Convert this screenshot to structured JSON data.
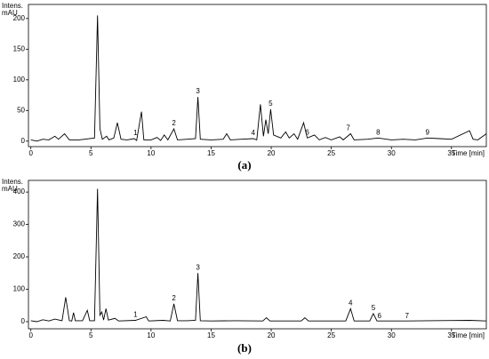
{
  "chart_data": [
    {
      "type": "line",
      "caption": "(a)",
      "ylabel": [
        "Intens.",
        "mAU"
      ],
      "xlabel": "Time [min]",
      "color": "#000000",
      "xlim": [
        -0.2,
        37.9
      ],
      "ylim": [
        -9,
        223
      ],
      "xticks": [
        0,
        5,
        10,
        15,
        20,
        25,
        30,
        35
      ],
      "yticks": [
        0,
        50,
        100,
        150,
        200
      ],
      "x": [
        0,
        0.5,
        1,
        1.5,
        2,
        2.3,
        2.8,
        3.2,
        4,
        5.3,
        5.55,
        5.75,
        5.95,
        6.3,
        6.5,
        6.9,
        7.2,
        7.5,
        8,
        8.6,
        8.8,
        9.2,
        9.4,
        10,
        10.5,
        10.8,
        11.1,
        11.4,
        11.9,
        12.2,
        13,
        13.7,
        13.9,
        14.1,
        15,
        16,
        16.3,
        16.6,
        17.5,
        18.5,
        18.8,
        19.1,
        19.35,
        19.55,
        19.75,
        19.95,
        20.2,
        20.8,
        21.2,
        21.5,
        21.9,
        22.2,
        22.7,
        23,
        23.6,
        24,
        24.5,
        25,
        25.7,
        26,
        26.6,
        26.9,
        28,
        28.9,
        30,
        31,
        32,
        33,
        34,
        35,
        36.5,
        36.8,
        37.2,
        37.9
      ],
      "values": [
        2,
        0,
        3,
        2,
        8,
        3,
        12,
        2,
        2,
        5,
        205,
        20,
        3,
        8,
        2,
        5,
        30,
        3,
        2,
        4,
        1,
        48,
        2,
        2,
        6,
        1,
        10,
        2,
        20,
        2,
        3,
        4,
        72,
        3,
        2,
        3,
        12,
        2,
        3,
        4,
        2,
        60,
        8,
        35,
        12,
        52,
        10,
        5,
        15,
        5,
        12,
        3,
        30,
        5,
        10,
        2,
        6,
        2,
        7,
        2,
        12,
        2,
        3,
        5,
        2,
        3,
        2,
        5,
        4,
        3,
        17,
        3,
        2,
        12
      ],
      "annotations": [
        {
          "text": "1",
          "x": 8.7,
          "y": 4
        },
        {
          "text": "2",
          "x": 11.9,
          "y": 20
        },
        {
          "text": "3",
          "x": 13.9,
          "y": 72
        },
        {
          "text": "4",
          "x": 18.5,
          "y": 4
        },
        {
          "text": "5",
          "x": 19.95,
          "y": 52
        },
        {
          "text": "6",
          "x": 23,
          "y": 5
        },
        {
          "text": "7",
          "x": 26.4,
          "y": 12
        },
        {
          "text": "8",
          "x": 28.9,
          "y": 5
        },
        {
          "text": "9",
          "x": 33,
          "y": 5
        }
      ]
    },
    {
      "type": "line",
      "caption": "(b)",
      "ylabel": [
        "Intens.",
        "mAU"
      ],
      "xlabel": "Time [min]",
      "color": "#000000",
      "xlim": [
        -0.2,
        37.9
      ],
      "ylim": [
        -22,
        436
      ],
      "xticks": [
        0,
        5,
        10,
        15,
        20,
        25,
        30,
        35
      ],
      "yticks": [
        0,
        100,
        200,
        300,
        400
      ],
      "x": [
        0,
        0.5,
        1,
        1.5,
        2,
        2.6,
        2.9,
        3.2,
        3.4,
        3.55,
        3.7,
        4.3,
        4.7,
        4.9,
        5.3,
        5.55,
        5.75,
        5.9,
        6.05,
        6.25,
        6.45,
        7,
        7.3,
        8.7,
        9.6,
        9.8,
        11,
        11.6,
        11.9,
        12.2,
        13,
        13.7,
        13.9,
        14.1,
        15,
        17,
        19.3,
        19.6,
        19.9,
        22.5,
        22.8,
        23.1,
        26.2,
        26.6,
        26.9,
        28.2,
        28.5,
        28.8,
        31.3,
        33,
        36.5,
        37.9
      ],
      "values": [
        3,
        0,
        6,
        2,
        8,
        3,
        75,
        3,
        2,
        28,
        3,
        3,
        35,
        3,
        3,
        410,
        20,
        30,
        5,
        40,
        5,
        10,
        2,
        4,
        15,
        2,
        4,
        2,
        55,
        3,
        3,
        4,
        150,
        3,
        2,
        3,
        2,
        12,
        2,
        2,
        12,
        2,
        2,
        40,
        2,
        2,
        25,
        2,
        2,
        3,
        4,
        2
      ],
      "annotations": [
        {
          "text": "1",
          "x": 8.7,
          "y": 4
        },
        {
          "text": "2",
          "x": 11.9,
          "y": 55
        },
        {
          "text": "3",
          "x": 13.9,
          "y": 150
        },
        {
          "text": "4",
          "x": 26.6,
          "y": 40
        },
        {
          "text": "5",
          "x": 28.5,
          "y": 25
        },
        {
          "text": "6",
          "x": 29,
          "y": 0
        },
        {
          "text": "7",
          "x": 31.3,
          "y": 0
        }
      ]
    }
  ]
}
